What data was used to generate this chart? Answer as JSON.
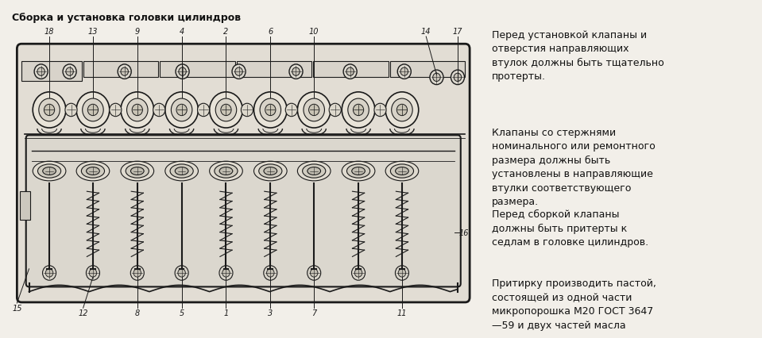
{
  "bg_color": "#f2efe9",
  "title": "Сборка и установка головки цилиндров",
  "title_fontsize": 9.0,
  "title_fontweight": "bold",
  "fig_width": 9.39,
  "fig_height": 3.97,
  "text_paragraphs": [
    "Перед установкой клапаны и\nотверстия направляющих\nвтулок должны быть тщательно\nпротерты.",
    "Клапаны со стержнями\nноминального или ремонтного\nразмера должны быть\nустановлены в направляющие\nвтулки соответствующего\nразмера.",
    "Перед сборкой клапаны\nдолжны быть притерты к\nседлам в головке цилиндров.",
    "Притирку производить пастой,\nсостоящей из одной части\nмикропорошка М20 ГОСТ 3647\n—59 и двух частей масла"
  ],
  "text_fontsize": 9.0,
  "diagram_color": "#1a1a1a",
  "diagram_bg": "#e8e4dc",
  "top_labels": [
    "18",
    "13",
    "9",
    "4",
    "2",
    "6",
    "10",
    "14",
    "17"
  ],
  "bottom_labels": [
    "15",
    "12",
    "8",
    "5",
    "1",
    "3",
    "7",
    "11"
  ]
}
